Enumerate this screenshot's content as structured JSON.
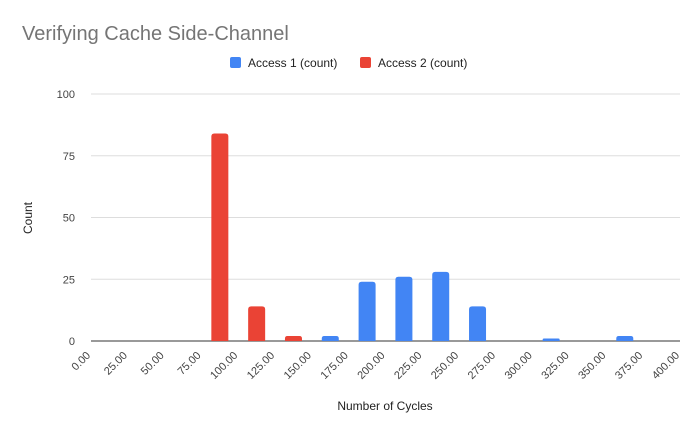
{
  "chart_data": {
    "type": "bar",
    "title": "Verifying Cache Side-Channel",
    "xlabel": "Number of Cycles",
    "ylabel": "Count",
    "ylim": [
      0,
      100
    ],
    "yticks": [
      "0",
      "25",
      "50",
      "75",
      "100"
    ],
    "categories": [
      "0.00",
      "25.00",
      "50.00",
      "75.00",
      "100.00",
      "125.00",
      "150.00",
      "175.00",
      "200.00",
      "225.00",
      "250.00",
      "275.00",
      "300.00",
      "325.00",
      "350.00",
      "375.00",
      "400.00"
    ],
    "grid": true,
    "legend_position": "top",
    "series": [
      {
        "name": "Access 1  (count)",
        "color": "#4285f4",
        "values": [
          0,
          0,
          0,
          0,
          0,
          0,
          1,
          2,
          24,
          26,
          28,
          14,
          0,
          1,
          0,
          2,
          0
        ]
      },
      {
        "name": "Access 2 (count)",
        "color": "#ea4335",
        "values": [
          0,
          0,
          0,
          0,
          84,
          14,
          2,
          0,
          0,
          0,
          0,
          0,
          0,
          0,
          0,
          0,
          0
        ]
      }
    ]
  }
}
